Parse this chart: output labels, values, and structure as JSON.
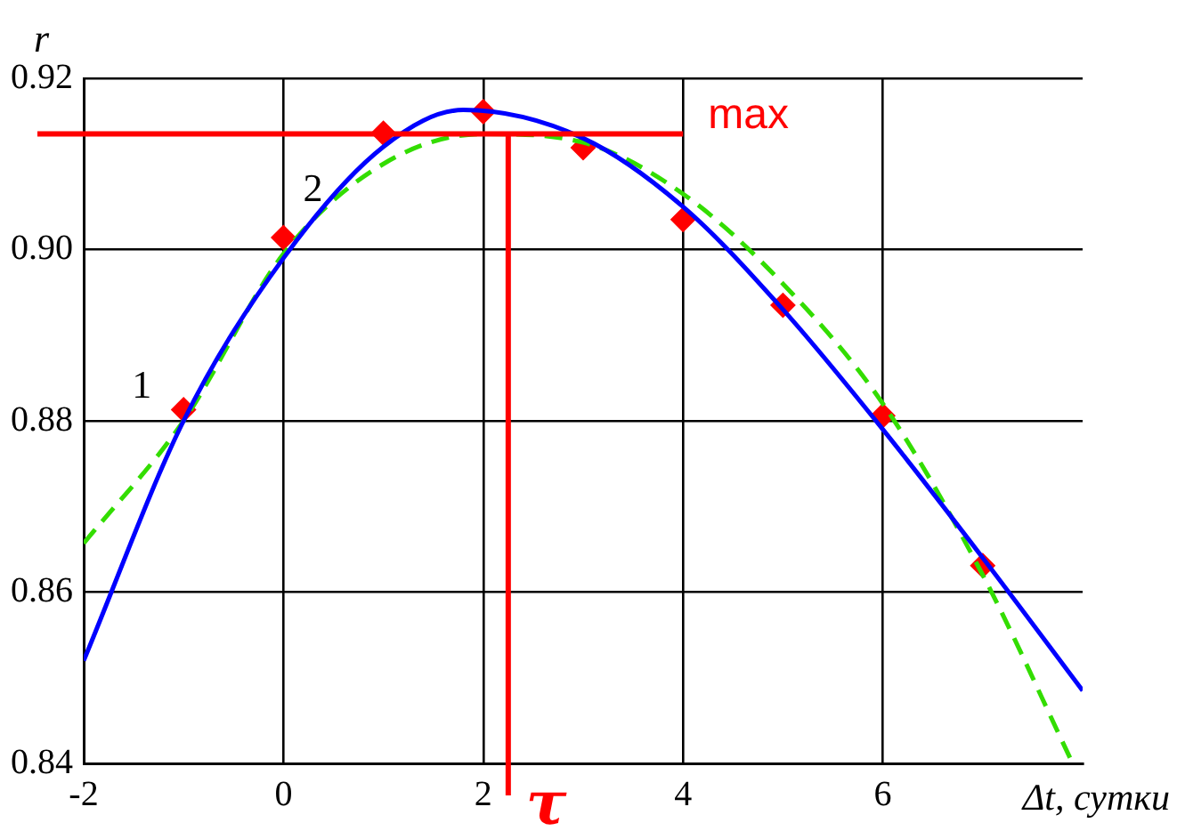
{
  "chart_data": {
    "type": "line",
    "xlabel": "Δt, сутки",
    "ylabel": "r",
    "xlim": [
      -2,
      8
    ],
    "xticks": [
      -2,
      0,
      2,
      4,
      6
    ],
    "ylim": [
      0.84,
      0.92
    ],
    "yticks": [
      {
        "value": 0.84,
        "label": "0.84"
      },
      {
        "value": 0.86,
        "label": "0.86"
      },
      {
        "value": 0.88,
        "label": "0.88"
      },
      {
        "value": 0.9,
        "label": "0.90"
      },
      {
        "value": 0.92,
        "label": "0.92"
      }
    ],
    "grid": true,
    "legend": false,
    "series": [
      {
        "name": "1",
        "type": "line",
        "color": "#0000ff",
        "line_style": "solid",
        "marker": "none",
        "x": [
          -2,
          -1,
          0,
          1,
          1.8,
          3,
          4,
          5,
          6,
          7,
          8
        ],
        "values": [
          0.852,
          0.88,
          0.899,
          0.912,
          0.9163,
          0.913,
          0.905,
          0.893,
          0.879,
          0.864,
          0.8485
        ]
      },
      {
        "name": "2",
        "type": "line",
        "color": "#33dd00",
        "line_style": "dashed",
        "marker": "none",
        "x": [
          -2,
          -1,
          0,
          1,
          2,
          3,
          4,
          5,
          6,
          7,
          7.9
        ],
        "values": [
          0.8657,
          0.88,
          0.8995,
          0.91,
          0.9135,
          0.9125,
          0.9065,
          0.896,
          0.882,
          0.862,
          0.84
        ]
      },
      {
        "type": "scatter",
        "color": "#ff0000",
        "marker": "diamond",
        "x": [
          -1,
          0,
          1,
          2,
          3,
          4,
          5,
          6,
          7
        ],
        "values": [
          0.8813,
          0.9014,
          0.9136,
          0.9161,
          0.9119,
          0.9035,
          0.8935,
          0.8806,
          0.8631
        ]
      }
    ],
    "ref_lines": [
      {
        "axis": "y",
        "value": 0.9135,
        "label": "max",
        "color": "#ff0000"
      },
      {
        "axis": "x",
        "value": 2.25,
        "label": "τ",
        "color": "#ff0000"
      }
    ]
  }
}
